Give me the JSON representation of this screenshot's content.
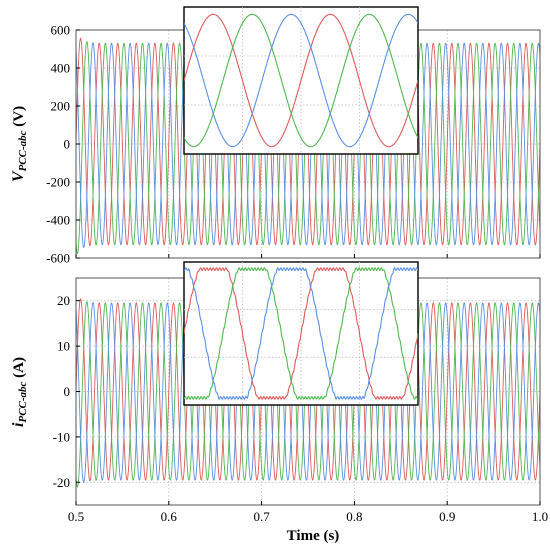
{
  "chart_data": [
    {
      "type": "line",
      "id": "voltage",
      "ylabel_main": "V",
      "ylabel_sub": "PCC-abc",
      "ylabel_unit": " (V)",
      "xlim": [
        0.5,
        1.0
      ],
      "ylim": [
        -600,
        600
      ],
      "yticks": [
        -600,
        -400,
        -200,
        0,
        200,
        400,
        600
      ],
      "grid": true,
      "frequency_hz": 50,
      "amplitude": 530,
      "initial_overshoot": 590,
      "series": [
        {
          "phase_deg": 0,
          "color": "#e05a5a"
        },
        {
          "phase_deg": -120,
          "color": "#4fb84f"
        },
        {
          "phase_deg": 120,
          "color": "#5a8fe6"
        }
      ],
      "inset": {
        "x_range": [
          0.9,
          0.94
        ],
        "waveform": "sine"
      }
    },
    {
      "type": "line",
      "id": "current",
      "ylabel_main": "i",
      "ylabel_sub": "PCC-abc",
      "ylabel_unit": " (A)",
      "xlim": [
        0.5,
        1.0
      ],
      "ylim": [
        -25,
        25
      ],
      "yticks": [
        -20,
        -10,
        0,
        10,
        20
      ],
      "grid": true,
      "frequency_hz": 50,
      "amplitude": 19.5,
      "initial_overshoot": 21.5,
      "series": [
        {
          "phase_deg": 0,
          "color": "#e05a5a"
        },
        {
          "phase_deg": -120,
          "color": "#4fb84f"
        },
        {
          "phase_deg": 120,
          "color": "#5a8fe6"
        }
      ],
      "inset": {
        "x_range": [
          0.9,
          0.94
        ],
        "waveform": "distorted"
      }
    }
  ],
  "xaxis": {
    "label": "Time (s)",
    "ticks": [
      0.5,
      0.6,
      0.7,
      0.8,
      0.9,
      1.0
    ],
    "tick_labels": [
      "0.5",
      "0.6",
      "0.7",
      "0.8",
      "0.9",
      "1.0"
    ]
  },
  "colors": {
    "grid": "#bfbfbf",
    "frame": "#555555"
  }
}
